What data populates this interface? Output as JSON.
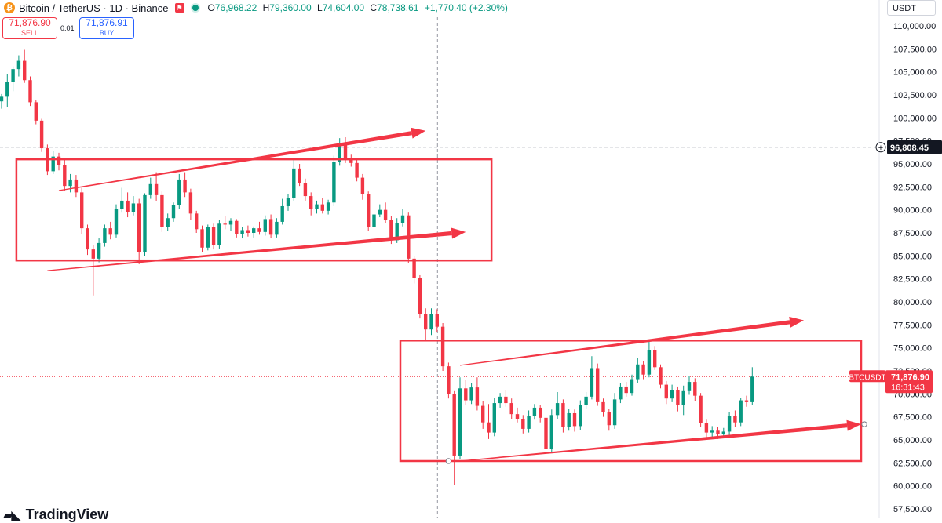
{
  "header": {
    "symbol": "Bitcoin / TetherUS · 1D · Binance",
    "logo_letter": "₿",
    "ohlc": {
      "o_label": "O",
      "o": "76,968.22",
      "h_label": "H",
      "h": "79,360.00",
      "l_label": "L",
      "l": "74,604.00",
      "c_label": "C",
      "c": "78,738.61",
      "change": "+1,770.40 (+2.30%)"
    },
    "colors": {
      "up": "#089981",
      "down": "#f23645",
      "accent": "#2962ff"
    }
  },
  "trade": {
    "sell_price": "71,876.90",
    "sell_label": "SELL",
    "spread": "0.01",
    "buy_price": "71,876.91",
    "buy_label": "BUY"
  },
  "currency_button": "USDT",
  "branding": {
    "name": "TradingView"
  },
  "chart_data": {
    "type": "candlestick",
    "ylim": [
      56000,
      112000
    ],
    "y_ticks": [
      "110,000.00",
      "107,500.00",
      "105,000.00",
      "102,500.00",
      "100,000.00",
      "97,500.00",
      "95,000.00",
      "92,500.00",
      "90,000.00",
      "87,500.00",
      "85,000.00",
      "82,500.00",
      "80,000.00",
      "77,500.00",
      "75,000.00",
      "72,500.00",
      "70,000.00",
      "67,500.00",
      "65,000.00",
      "62,500.00",
      "60,000.00",
      "57,500.00"
    ],
    "tick_values": [
      110000,
      107500,
      105000,
      102500,
      100000,
      97500,
      95000,
      92500,
      90000,
      87500,
      85000,
      82500,
      80000,
      77500,
      75000,
      72500,
      70000,
      67500,
      65000,
      62500,
      60000,
      57500
    ],
    "crosshair": {
      "price": 96808.45,
      "label": "96,808.45"
    },
    "last_price": {
      "price": 71876.9,
      "label": "71,876.90",
      "countdown": "16:31:43",
      "symbol_tag": "BTCUSDT"
    },
    "candles": [
      {
        "o": 101800,
        "h": 102600,
        "l": 101000,
        "c": 102300
      },
      {
        "o": 102300,
        "h": 104800,
        "l": 101200,
        "c": 103900
      },
      {
        "o": 103900,
        "h": 105600,
        "l": 102900,
        "c": 105300
      },
      {
        "o": 105300,
        "h": 106800,
        "l": 104500,
        "c": 106200
      },
      {
        "o": 106200,
        "h": 107400,
        "l": 103800,
        "c": 104100
      },
      {
        "o": 104100,
        "h": 104500,
        "l": 101300,
        "c": 101700
      },
      {
        "o": 101700,
        "h": 101900,
        "l": 99300,
        "c": 99700
      },
      {
        "o": 99700,
        "h": 99900,
        "l": 96300,
        "c": 96700
      },
      {
        "o": 96700,
        "h": 97100,
        "l": 93800,
        "c": 94200
      },
      {
        "o": 94200,
        "h": 96400,
        "l": 93900,
        "c": 95800
      },
      {
        "o": 95800,
        "h": 96200,
        "l": 94300,
        "c": 94900
      },
      {
        "o": 94900,
        "h": 95600,
        "l": 92100,
        "c": 92600
      },
      {
        "o": 92600,
        "h": 93900,
        "l": 91900,
        "c": 93300
      },
      {
        "o": 93300,
        "h": 93800,
        "l": 91400,
        "c": 91900
      },
      {
        "o": 91900,
        "h": 92400,
        "l": 87400,
        "c": 88000
      },
      {
        "o": 88000,
        "h": 88400,
        "l": 85100,
        "c": 85700
      },
      {
        "o": 85700,
        "h": 86200,
        "l": 80700,
        "c": 84700
      },
      {
        "o": 84700,
        "h": 86900,
        "l": 84300,
        "c": 86400
      },
      {
        "o": 86400,
        "h": 88400,
        "l": 86000,
        "c": 88000
      },
      {
        "o": 88000,
        "h": 88700,
        "l": 86800,
        "c": 87300
      },
      {
        "o": 87300,
        "h": 90600,
        "l": 87000,
        "c": 90100
      },
      {
        "o": 90100,
        "h": 92400,
        "l": 89700,
        "c": 91000
      },
      {
        "o": 91000,
        "h": 91900,
        "l": 89200,
        "c": 89800
      },
      {
        "o": 89800,
        "h": 91500,
        "l": 89400,
        "c": 90700
      },
      {
        "o": 90700,
        "h": 91200,
        "l": 84100,
        "c": 85400
      },
      {
        "o": 85400,
        "h": 91800,
        "l": 85000,
        "c": 91600
      },
      {
        "o": 91600,
        "h": 93500,
        "l": 91200,
        "c": 92800
      },
      {
        "o": 92800,
        "h": 94100,
        "l": 91000,
        "c": 91600
      },
      {
        "o": 91600,
        "h": 92000,
        "l": 87600,
        "c": 88100
      },
      {
        "o": 88100,
        "h": 89600,
        "l": 87700,
        "c": 89100
      },
      {
        "o": 89100,
        "h": 90800,
        "l": 88700,
        "c": 90500
      },
      {
        "o": 90500,
        "h": 93900,
        "l": 90100,
        "c": 93300
      },
      {
        "o": 93300,
        "h": 94100,
        "l": 91400,
        "c": 91900
      },
      {
        "o": 91900,
        "h": 92300,
        "l": 88900,
        "c": 89600
      },
      {
        "o": 89600,
        "h": 89900,
        "l": 87500,
        "c": 87900
      },
      {
        "o": 87900,
        "h": 88300,
        "l": 85400,
        "c": 85900
      },
      {
        "o": 85900,
        "h": 88400,
        "l": 85600,
        "c": 88100
      },
      {
        "o": 88100,
        "h": 88500,
        "l": 85700,
        "c": 86200
      },
      {
        "o": 86200,
        "h": 88900,
        "l": 85800,
        "c": 88500
      },
      {
        "o": 88500,
        "h": 89300,
        "l": 87900,
        "c": 88400
      },
      {
        "o": 88400,
        "h": 89100,
        "l": 87700,
        "c": 88800
      },
      {
        "o": 88800,
        "h": 89000,
        "l": 87000,
        "c": 87400
      },
      {
        "o": 87400,
        "h": 88100,
        "l": 86900,
        "c": 87800
      },
      {
        "o": 87800,
        "h": 88300,
        "l": 87100,
        "c": 87500
      },
      {
        "o": 87500,
        "h": 88200,
        "l": 87000,
        "c": 88000
      },
      {
        "o": 88000,
        "h": 88700,
        "l": 87300,
        "c": 87600
      },
      {
        "o": 87600,
        "h": 89400,
        "l": 87200,
        "c": 89000
      },
      {
        "o": 89000,
        "h": 89500,
        "l": 86900,
        "c": 87300
      },
      {
        "o": 87300,
        "h": 89100,
        "l": 87000,
        "c": 88700
      },
      {
        "o": 88700,
        "h": 91200,
        "l": 88400,
        "c": 90400
      },
      {
        "o": 90400,
        "h": 91700,
        "l": 89900,
        "c": 91300
      },
      {
        "o": 91300,
        "h": 95500,
        "l": 91000,
        "c": 94500
      },
      {
        "o": 94500,
        "h": 95000,
        "l": 92600,
        "c": 92900
      },
      {
        "o": 92900,
        "h": 93400,
        "l": 91000,
        "c": 91500
      },
      {
        "o": 91500,
        "h": 91900,
        "l": 89400,
        "c": 90100
      },
      {
        "o": 90100,
        "h": 91000,
        "l": 89600,
        "c": 90600
      },
      {
        "o": 90600,
        "h": 91300,
        "l": 89600,
        "c": 89900
      },
      {
        "o": 89900,
        "h": 91100,
        "l": 89500,
        "c": 90800
      },
      {
        "o": 90800,
        "h": 95900,
        "l": 90400,
        "c": 95200
      },
      {
        "o": 95200,
        "h": 97800,
        "l": 94800,
        "c": 97300
      },
      {
        "o": 97300,
        "h": 97900,
        "l": 95100,
        "c": 95600
      },
      {
        "o": 95600,
        "h": 96000,
        "l": 94700,
        "c": 95100
      },
      {
        "o": 95100,
        "h": 95500,
        "l": 93100,
        "c": 93500
      },
      {
        "o": 93500,
        "h": 93900,
        "l": 91100,
        "c": 91700
      },
      {
        "o": 91700,
        "h": 92000,
        "l": 87700,
        "c": 88100
      },
      {
        "o": 88100,
        "h": 90100,
        "l": 87800,
        "c": 89500
      },
      {
        "o": 89500,
        "h": 90600,
        "l": 89200,
        "c": 90000
      },
      {
        "o": 90000,
        "h": 90800,
        "l": 88600,
        "c": 88900
      },
      {
        "o": 88900,
        "h": 89300,
        "l": 86300,
        "c": 86700
      },
      {
        "o": 86700,
        "h": 89100,
        "l": 86400,
        "c": 88600
      },
      {
        "o": 88600,
        "h": 90100,
        "l": 88200,
        "c": 89400
      },
      {
        "o": 89400,
        "h": 89700,
        "l": 84200,
        "c": 84700
      },
      {
        "o": 84700,
        "h": 85000,
        "l": 82000,
        "c": 82600
      },
      {
        "o": 82600,
        "h": 82900,
        "l": 78200,
        "c": 78700
      },
      {
        "o": 78700,
        "h": 79300,
        "l": 75800,
        "c": 77000
      },
      {
        "o": 77000,
        "h": 79300,
        "l": 76400,
        "c": 78700
      },
      {
        "o": 78700,
        "h": 79200,
        "l": 76700,
        "c": 77300
      },
      {
        "o": 77300,
        "h": 77700,
        "l": 72500,
        "c": 73000
      },
      {
        "o": 73000,
        "h": 73400,
        "l": 69500,
        "c": 70000
      },
      {
        "o": 70000,
        "h": 70300,
        "l": 60100,
        "c": 63300
      },
      {
        "o": 63300,
        "h": 71800,
        "l": 62900,
        "c": 70600
      },
      {
        "o": 70600,
        "h": 71500,
        "l": 68800,
        "c": 69300
      },
      {
        "o": 69300,
        "h": 71200,
        "l": 68900,
        "c": 70700
      },
      {
        "o": 70700,
        "h": 71800,
        "l": 68200,
        "c": 68700
      },
      {
        "o": 68700,
        "h": 69200,
        "l": 66200,
        "c": 66900
      },
      {
        "o": 66900,
        "h": 68900,
        "l": 65100,
        "c": 65800
      },
      {
        "o": 65800,
        "h": 69600,
        "l": 65400,
        "c": 69000
      },
      {
        "o": 69000,
        "h": 70100,
        "l": 68500,
        "c": 69700
      },
      {
        "o": 69700,
        "h": 70400,
        "l": 68600,
        "c": 69000
      },
      {
        "o": 69000,
        "h": 69500,
        "l": 67300,
        "c": 67800
      },
      {
        "o": 67800,
        "h": 68500,
        "l": 66900,
        "c": 67300
      },
      {
        "o": 67300,
        "h": 67700,
        "l": 65700,
        "c": 66200
      },
      {
        "o": 66200,
        "h": 68200,
        "l": 65800,
        "c": 67600
      },
      {
        "o": 67600,
        "h": 68900,
        "l": 67200,
        "c": 68500
      },
      {
        "o": 68500,
        "h": 68800,
        "l": 66900,
        "c": 67400
      },
      {
        "o": 67400,
        "h": 67800,
        "l": 62900,
        "c": 64000
      },
      {
        "o": 64000,
        "h": 68300,
        "l": 63600,
        "c": 67700
      },
      {
        "o": 67700,
        "h": 70200,
        "l": 67300,
        "c": 69000
      },
      {
        "o": 69000,
        "h": 69400,
        "l": 65800,
        "c": 66400
      },
      {
        "o": 66400,
        "h": 68400,
        "l": 66000,
        "c": 67900
      },
      {
        "o": 67900,
        "h": 68300,
        "l": 65900,
        "c": 66500
      },
      {
        "o": 66500,
        "h": 69300,
        "l": 66100,
        "c": 68800
      },
      {
        "o": 68800,
        "h": 70200,
        "l": 68400,
        "c": 69700
      },
      {
        "o": 69700,
        "h": 74100,
        "l": 69400,
        "c": 72800
      },
      {
        "o": 72800,
        "h": 73300,
        "l": 68700,
        "c": 69100
      },
      {
        "o": 69100,
        "h": 69500,
        "l": 67500,
        "c": 68000
      },
      {
        "o": 68000,
        "h": 68400,
        "l": 66000,
        "c": 66600
      },
      {
        "o": 66600,
        "h": 70100,
        "l": 66200,
        "c": 69400
      },
      {
        "o": 69400,
        "h": 71200,
        "l": 69000,
        "c": 70800
      },
      {
        "o": 70800,
        "h": 71300,
        "l": 69700,
        "c": 70100
      },
      {
        "o": 70100,
        "h": 72100,
        "l": 69800,
        "c": 71600
      },
      {
        "o": 71600,
        "h": 73900,
        "l": 71200,
        "c": 73200
      },
      {
        "o": 73200,
        "h": 73600,
        "l": 71600,
        "c": 72100
      },
      {
        "o": 72100,
        "h": 75700,
        "l": 71800,
        "c": 74800
      },
      {
        "o": 74800,
        "h": 75200,
        "l": 72600,
        "c": 72900
      },
      {
        "o": 72900,
        "h": 73200,
        "l": 70600,
        "c": 71000
      },
      {
        "o": 71000,
        "h": 71400,
        "l": 68900,
        "c": 69500
      },
      {
        "o": 69500,
        "h": 71000,
        "l": 69100,
        "c": 70400
      },
      {
        "o": 70400,
        "h": 70800,
        "l": 68100,
        "c": 68800
      },
      {
        "o": 68800,
        "h": 70900,
        "l": 67700,
        "c": 70300
      },
      {
        "o": 70300,
        "h": 71900,
        "l": 69900,
        "c": 71300
      },
      {
        "o": 71300,
        "h": 71700,
        "l": 69200,
        "c": 69800
      },
      {
        "o": 69800,
        "h": 70100,
        "l": 66400,
        "c": 66800
      },
      {
        "o": 66800,
        "h": 67200,
        "l": 65200,
        "c": 65800
      },
      {
        "o": 65800,
        "h": 66500,
        "l": 65300,
        "c": 66000
      },
      {
        "o": 66000,
        "h": 66400,
        "l": 65100,
        "c": 65600
      },
      {
        "o": 65600,
        "h": 66300,
        "l": 65200,
        "c": 65900
      },
      {
        "o": 65900,
        "h": 68000,
        "l": 65500,
        "c": 67600
      },
      {
        "o": 67600,
        "h": 68200,
        "l": 66400,
        "c": 66900
      },
      {
        "o": 66900,
        "h": 69600,
        "l": 66500,
        "c": 69300
      },
      {
        "o": 69300,
        "h": 69800,
        "l": 68600,
        "c": 69100
      },
      {
        "o": 69100,
        "h": 72900,
        "l": 68800,
        "c": 71877
      }
    ],
    "annotations": {
      "rectangles": [
        {
          "x0": 3,
          "x1": 85.5,
          "y_top": 95500,
          "y_bottom": 84500
        },
        {
          "x0": 70,
          "x1": 150,
          "y_top": 75800,
          "y_bottom": 62700
        }
      ],
      "lines": [
        {
          "from": [
            10,
            92100
          ],
          "to": [
            74,
            98600
          ],
          "arrow": true
        },
        {
          "from": [
            8,
            83400
          ],
          "to": [
            81,
            87600
          ],
          "arrow": true
        },
        {
          "from": [
            80,
            73100
          ],
          "to": [
            140,
            78000
          ],
          "arrow": true
        },
        {
          "from": [
            80,
            62700
          ],
          "to": [
            150,
            66700
          ],
          "arrow": true
        }
      ]
    }
  }
}
